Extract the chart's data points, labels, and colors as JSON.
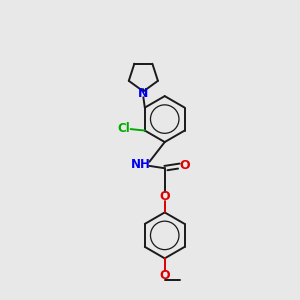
{
  "bg_color": "#e8e8e8",
  "bond_color": "#1a1a1a",
  "N_color": "#0000ee",
  "O_color": "#dd0000",
  "Cl_color": "#00aa00",
  "line_width": 1.4,
  "fig_size": [
    3.0,
    3.0
  ],
  "dpi": 100,
  "xlim": [
    0,
    10
  ],
  "ylim": [
    0,
    10
  ]
}
